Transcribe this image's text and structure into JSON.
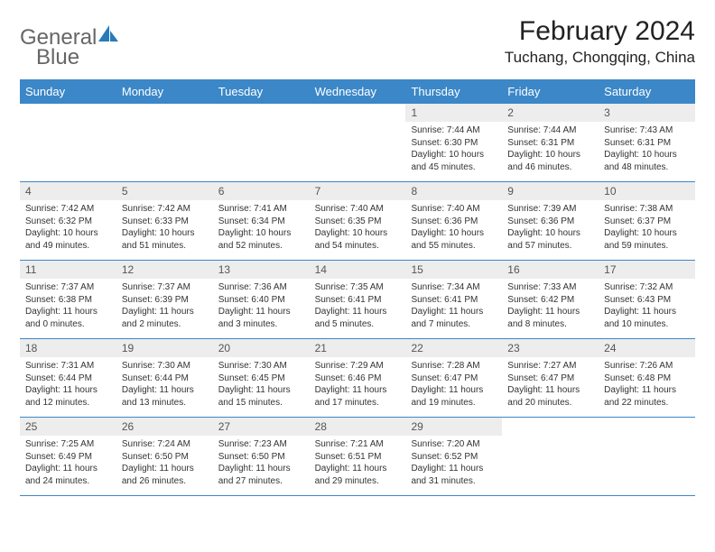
{
  "logo": {
    "text1": "General",
    "text2": "Blue"
  },
  "title": "February 2024",
  "location": "Tuchang, Chongqing, China",
  "colors": {
    "header_bg": "#3b87c8",
    "header_text": "#ffffff",
    "daynum_bg": "#ededed",
    "daynum_text": "#555555",
    "body_text": "#333333",
    "border": "#3b87c8",
    "logo_gray": "#666666",
    "logo_blue": "#2a7ab8"
  },
  "day_headers": [
    "Sunday",
    "Monday",
    "Tuesday",
    "Wednesday",
    "Thursday",
    "Friday",
    "Saturday"
  ],
  "weeks": [
    [
      null,
      null,
      null,
      null,
      {
        "num": "1",
        "sunrise": "Sunrise: 7:44 AM",
        "sunset": "Sunset: 6:30 PM",
        "daylight": "Daylight: 10 hours and 45 minutes."
      },
      {
        "num": "2",
        "sunrise": "Sunrise: 7:44 AM",
        "sunset": "Sunset: 6:31 PM",
        "daylight": "Daylight: 10 hours and 46 minutes."
      },
      {
        "num": "3",
        "sunrise": "Sunrise: 7:43 AM",
        "sunset": "Sunset: 6:31 PM",
        "daylight": "Daylight: 10 hours and 48 minutes."
      }
    ],
    [
      {
        "num": "4",
        "sunrise": "Sunrise: 7:42 AM",
        "sunset": "Sunset: 6:32 PM",
        "daylight": "Daylight: 10 hours and 49 minutes."
      },
      {
        "num": "5",
        "sunrise": "Sunrise: 7:42 AM",
        "sunset": "Sunset: 6:33 PM",
        "daylight": "Daylight: 10 hours and 51 minutes."
      },
      {
        "num": "6",
        "sunrise": "Sunrise: 7:41 AM",
        "sunset": "Sunset: 6:34 PM",
        "daylight": "Daylight: 10 hours and 52 minutes."
      },
      {
        "num": "7",
        "sunrise": "Sunrise: 7:40 AM",
        "sunset": "Sunset: 6:35 PM",
        "daylight": "Daylight: 10 hours and 54 minutes."
      },
      {
        "num": "8",
        "sunrise": "Sunrise: 7:40 AM",
        "sunset": "Sunset: 6:36 PM",
        "daylight": "Daylight: 10 hours and 55 minutes."
      },
      {
        "num": "9",
        "sunrise": "Sunrise: 7:39 AM",
        "sunset": "Sunset: 6:36 PM",
        "daylight": "Daylight: 10 hours and 57 minutes."
      },
      {
        "num": "10",
        "sunrise": "Sunrise: 7:38 AM",
        "sunset": "Sunset: 6:37 PM",
        "daylight": "Daylight: 10 hours and 59 minutes."
      }
    ],
    [
      {
        "num": "11",
        "sunrise": "Sunrise: 7:37 AM",
        "sunset": "Sunset: 6:38 PM",
        "daylight": "Daylight: 11 hours and 0 minutes."
      },
      {
        "num": "12",
        "sunrise": "Sunrise: 7:37 AM",
        "sunset": "Sunset: 6:39 PM",
        "daylight": "Daylight: 11 hours and 2 minutes."
      },
      {
        "num": "13",
        "sunrise": "Sunrise: 7:36 AM",
        "sunset": "Sunset: 6:40 PM",
        "daylight": "Daylight: 11 hours and 3 minutes."
      },
      {
        "num": "14",
        "sunrise": "Sunrise: 7:35 AM",
        "sunset": "Sunset: 6:41 PM",
        "daylight": "Daylight: 11 hours and 5 minutes."
      },
      {
        "num": "15",
        "sunrise": "Sunrise: 7:34 AM",
        "sunset": "Sunset: 6:41 PM",
        "daylight": "Daylight: 11 hours and 7 minutes."
      },
      {
        "num": "16",
        "sunrise": "Sunrise: 7:33 AM",
        "sunset": "Sunset: 6:42 PM",
        "daylight": "Daylight: 11 hours and 8 minutes."
      },
      {
        "num": "17",
        "sunrise": "Sunrise: 7:32 AM",
        "sunset": "Sunset: 6:43 PM",
        "daylight": "Daylight: 11 hours and 10 minutes."
      }
    ],
    [
      {
        "num": "18",
        "sunrise": "Sunrise: 7:31 AM",
        "sunset": "Sunset: 6:44 PM",
        "daylight": "Daylight: 11 hours and 12 minutes."
      },
      {
        "num": "19",
        "sunrise": "Sunrise: 7:30 AM",
        "sunset": "Sunset: 6:44 PM",
        "daylight": "Daylight: 11 hours and 13 minutes."
      },
      {
        "num": "20",
        "sunrise": "Sunrise: 7:30 AM",
        "sunset": "Sunset: 6:45 PM",
        "daylight": "Daylight: 11 hours and 15 minutes."
      },
      {
        "num": "21",
        "sunrise": "Sunrise: 7:29 AM",
        "sunset": "Sunset: 6:46 PM",
        "daylight": "Daylight: 11 hours and 17 minutes."
      },
      {
        "num": "22",
        "sunrise": "Sunrise: 7:28 AM",
        "sunset": "Sunset: 6:47 PM",
        "daylight": "Daylight: 11 hours and 19 minutes."
      },
      {
        "num": "23",
        "sunrise": "Sunrise: 7:27 AM",
        "sunset": "Sunset: 6:47 PM",
        "daylight": "Daylight: 11 hours and 20 minutes."
      },
      {
        "num": "24",
        "sunrise": "Sunrise: 7:26 AM",
        "sunset": "Sunset: 6:48 PM",
        "daylight": "Daylight: 11 hours and 22 minutes."
      }
    ],
    [
      {
        "num": "25",
        "sunrise": "Sunrise: 7:25 AM",
        "sunset": "Sunset: 6:49 PM",
        "daylight": "Daylight: 11 hours and 24 minutes."
      },
      {
        "num": "26",
        "sunrise": "Sunrise: 7:24 AM",
        "sunset": "Sunset: 6:50 PM",
        "daylight": "Daylight: 11 hours and 26 minutes."
      },
      {
        "num": "27",
        "sunrise": "Sunrise: 7:23 AM",
        "sunset": "Sunset: 6:50 PM",
        "daylight": "Daylight: 11 hours and 27 minutes."
      },
      {
        "num": "28",
        "sunrise": "Sunrise: 7:21 AM",
        "sunset": "Sunset: 6:51 PM",
        "daylight": "Daylight: 11 hours and 29 minutes."
      },
      {
        "num": "29",
        "sunrise": "Sunrise: 7:20 AM",
        "sunset": "Sunset: 6:52 PM",
        "daylight": "Daylight: 11 hours and 31 minutes."
      },
      null,
      null
    ]
  ]
}
